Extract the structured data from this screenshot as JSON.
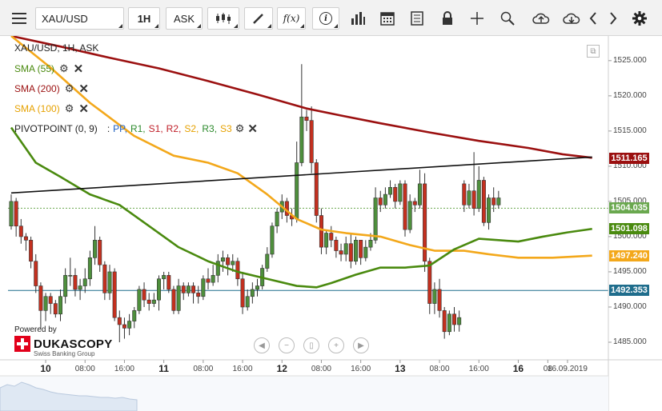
{
  "toolbar": {
    "menu_icon": "hamburger-menu-icon",
    "symbol": "XAU/USD",
    "timeframe": "1H",
    "price_side": "ASK",
    "fx_label": "f(x)",
    "info_label": "i",
    "icons": [
      "chart-type-icon",
      "draw-icon",
      "indicator-icon",
      "info-icon",
      "volume-icon",
      "calendar-icon",
      "news-icon",
      "lock-icon",
      "crosshair-icon",
      "zoom-icon",
      "upload-icon",
      "download-icon",
      "chevron-left-icon",
      "chevron-right-icon",
      "gear-icon"
    ]
  },
  "legend": {
    "title": "XAU/USD, 1H, ASK",
    "indicators": [
      {
        "label": "SMA (55)",
        "color": "#4a8a0f"
      },
      {
        "label": "SMA (200)",
        "color": "#9b1010"
      },
      {
        "label": "SMA (100)",
        "color": "#f3a81b"
      }
    ],
    "pivot": {
      "label": "PIVOTPOINT (0, 9)",
      "parts": [
        {
          "text": "PP,",
          "color": "#2060c0"
        },
        {
          "text": "R1,",
          "color": "#2e8b2e"
        },
        {
          "text": "S1,",
          "color": "#c0202a"
        },
        {
          "text": "R2,",
          "color": "#c0202a"
        },
        {
          "text": "S2,",
          "color": "#e6a100"
        },
        {
          "text": "R3,",
          "color": "#2e8b2e"
        },
        {
          "text": "S3",
          "color": "#e6a100"
        }
      ]
    }
  },
  "price_tags": [
    {
      "value": "1511.165",
      "color": "#9b1010",
      "price": 1511.165
    },
    {
      "value": "1504.035",
      "color": "#6aa84f",
      "price": 1504.035
    },
    {
      "value": "1501.098",
      "color": "#4a8a0f",
      "price": 1501.098
    },
    {
      "value": "1497.240",
      "color": "#f3a81b",
      "price": 1497.24
    },
    {
      "value": "1492.353",
      "color": "#1f6d8c",
      "price": 1492.353
    }
  ],
  "branding": {
    "powered": "Powered by",
    "brand": "DUKASCOPY",
    "sub": "Swiss Banking Group"
  },
  "nav_icons": [
    "scroll-left-icon",
    "zoom-out-icon",
    "reset-icon",
    "zoom-in-icon",
    "scroll-right-icon"
  ],
  "chart_data": {
    "type": "candlestick",
    "symbol": "XAU/USD",
    "timeframe": "1H",
    "ylim": [
      1482.5,
      1528.5
    ],
    "y_ticks": [
      1485,
      1490,
      1495,
      1500,
      1505,
      1510,
      1515,
      1520,
      1525
    ],
    "y_tick_labels": [
      "1485.000",
      "1490.000",
      "1495.000",
      "1500.000",
      "1505.000",
      "1510.000",
      "1515.000",
      "1520.000",
      "1525.000"
    ],
    "x_ticks": [
      {
        "label": "10",
        "x": 7,
        "major": true
      },
      {
        "label": "08:00",
        "x": 15
      },
      {
        "label": "16:00",
        "x": 23
      },
      {
        "label": "11",
        "x": 31,
        "major": true
      },
      {
        "label": "08:00",
        "x": 39
      },
      {
        "label": "16:00",
        "x": 47
      },
      {
        "label": "12",
        "x": 55,
        "major": true
      },
      {
        "label": "08:00",
        "x": 63
      },
      {
        "label": "16:00",
        "x": 71
      },
      {
        "label": "13",
        "x": 79,
        "major": true
      },
      {
        "label": "08:00",
        "x": 87
      },
      {
        "label": "16:00",
        "x": 95
      },
      {
        "label": "16",
        "x": 103,
        "major": true
      },
      {
        "label": "08",
        "x": 109
      },
      {
        "label": "16.09.2019",
        "x": 113
      }
    ],
    "trendline": {
      "from": [
        0,
        1506.2
      ],
      "to": [
        118,
        1511.3
      ],
      "color": "#111111"
    },
    "horizontal_lines": [
      {
        "price": 1504.035,
        "color": "#6aa84f",
        "dashed": true
      },
      {
        "price": 1492.353,
        "color": "#1f6d8c",
        "dashed": false
      }
    ],
    "series": [
      {
        "name": "SMA (200)",
        "color": "#9b1010",
        "points": [
          [
            0,
            1528.5
          ],
          [
            10,
            1527.0
          ],
          [
            20,
            1525.4
          ],
          [
            30,
            1523.9
          ],
          [
            40,
            1522.1
          ],
          [
            50,
            1520.2
          ],
          [
            60,
            1518.2
          ],
          [
            67,
            1517.2
          ],
          [
            75,
            1516.1
          ],
          [
            85,
            1514.8
          ],
          [
            95,
            1513.6
          ],
          [
            105,
            1512.6
          ],
          [
            112,
            1511.7
          ],
          [
            118,
            1511.2
          ]
        ]
      },
      {
        "name": "SMA (100)",
        "color": "#f3a81b",
        "points": [
          [
            0,
            1528.5
          ],
          [
            8,
            1524.0
          ],
          [
            16,
            1519.0
          ],
          [
            25,
            1514.3
          ],
          [
            33,
            1511.5
          ],
          [
            40,
            1510.5
          ],
          [
            46,
            1509.0
          ],
          [
            52,
            1506.0
          ],
          [
            58,
            1502.5
          ],
          [
            63,
            1501.0
          ],
          [
            68,
            1500.5
          ],
          [
            75,
            1500.0
          ],
          [
            81,
            1498.8
          ],
          [
            86,
            1498.0
          ],
          [
            92,
            1498.0
          ],
          [
            97,
            1497.5
          ],
          [
            103,
            1497.0
          ],
          [
            110,
            1497.0
          ],
          [
            118,
            1497.3
          ]
        ]
      },
      {
        "name": "SMA (55)",
        "color": "#4a8a0f",
        "points": [
          [
            0,
            1515.5
          ],
          [
            5,
            1510.5
          ],
          [
            10,
            1508.5
          ],
          [
            16,
            1506.0
          ],
          [
            22,
            1504.5
          ],
          [
            28,
            1501.5
          ],
          [
            34,
            1498.5
          ],
          [
            40,
            1496.5
          ],
          [
            46,
            1495.0
          ],
          [
            52,
            1494.0
          ],
          [
            58,
            1493.0
          ],
          [
            62,
            1492.8
          ],
          [
            65,
            1493.4
          ],
          [
            70,
            1494.6
          ],
          [
            75,
            1495.6
          ],
          [
            80,
            1495.6
          ],
          [
            85,
            1495.9
          ],
          [
            90,
            1498.2
          ],
          [
            95,
            1499.7
          ],
          [
            99,
            1499.5
          ],
          [
            103,
            1499.3
          ],
          [
            108,
            1500.0
          ],
          [
            113,
            1500.6
          ],
          [
            118,
            1501.1
          ]
        ]
      }
    ],
    "candles": [
      [
        0,
        1501.5,
        1505.0,
        1501.0,
        1506.0
      ],
      [
        1,
        1505.0,
        1501.5,
        1500.0,
        1505.5
      ],
      [
        2,
        1501.5,
        1500.0,
        1499.0,
        1502.5
      ],
      [
        3,
        1500.0,
        1499.5,
        1498.0,
        1500.5
      ],
      [
        4,
        1499.5,
        1496.5,
        1495.5,
        1500.0
      ],
      [
        5,
        1496.5,
        1493.0,
        1492.0,
        1497.5
      ],
      [
        6,
        1493.0,
        1489.5,
        1487.0,
        1493.5
      ],
      [
        7,
        1489.5,
        1491.5,
        1488.0,
        1492.0
      ],
      [
        8,
        1491.5,
        1490.5,
        1489.0,
        1492.0
      ],
      [
        9,
        1490.5,
        1489.0,
        1488.5,
        1491.0
      ],
      [
        10,
        1489.0,
        1491.5,
        1488.0,
        1492.5
      ],
      [
        11,
        1491.5,
        1494.5,
        1490.5,
        1495.5
      ],
      [
        12,
        1494.5,
        1494.5,
        1493.0,
        1497.0
      ],
      [
        13,
        1494.5,
        1492.5,
        1491.5,
        1495.5
      ],
      [
        14,
        1492.5,
        1493.0,
        1491.0,
        1494.0
      ],
      [
        15,
        1493.0,
        1494.0,
        1492.0,
        1495.5
      ],
      [
        16,
        1494.0,
        1497.0,
        1493.0,
        1498.0
      ],
      [
        17,
        1497.0,
        1499.5,
        1496.0,
        1501.5
      ],
      [
        18,
        1499.5,
        1496.0,
        1495.0,
        1500.0
      ],
      [
        19,
        1496.0,
        1492.0,
        1491.0,
        1496.5
      ],
      [
        20,
        1492.0,
        1495.0,
        1491.0,
        1496.0
      ],
      [
        21,
        1495.0,
        1488.5,
        1488.0,
        1495.5
      ],
      [
        22,
        1488.5,
        1487.5,
        1485.0,
        1489.5
      ],
      [
        23,
        1487.5,
        1487.0,
        1485.5,
        1488.5
      ],
      [
        24,
        1487.0,
        1488.0,
        1486.0,
        1489.0
      ],
      [
        25,
        1488.0,
        1489.5,
        1487.0,
        1490.0
      ],
      [
        26,
        1489.5,
        1492.5,
        1489.0,
        1493.0
      ],
      [
        27,
        1492.5,
        1491.0,
        1490.0,
        1493.5
      ],
      [
        28,
        1491.0,
        1490.5,
        1489.5,
        1492.0
      ],
      [
        29,
        1490.5,
        1491.0,
        1490.0,
        1492.0
      ],
      [
        30,
        1491.0,
        1494.0,
        1489.5,
        1494.5
      ],
      [
        31,
        1494.0,
        1494.5,
        1492.5,
        1495.0
      ],
      [
        32,
        1494.5,
        1492.5,
        1492.0,
        1495.0
      ],
      [
        33,
        1492.5,
        1489.5,
        1489.0,
        1493.0
      ],
      [
        34,
        1489.5,
        1493.0,
        1489.0,
        1494.0
      ],
      [
        35,
        1493.0,
        1492.0,
        1491.0,
        1493.5
      ],
      [
        36,
        1492.0,
        1493.0,
        1491.5,
        1493.5
      ],
      [
        37,
        1493.0,
        1492.0,
        1490.5,
        1493.5
      ],
      [
        38,
        1492.0,
        1491.5,
        1490.5,
        1493.0
      ],
      [
        39,
        1491.5,
        1494.0,
        1491.0,
        1494.5
      ],
      [
        40,
        1494.0,
        1493.5,
        1492.5,
        1495.5
      ],
      [
        41,
        1493.5,
        1494.5,
        1493.0,
        1496.0
      ],
      [
        42,
        1494.5,
        1496.5,
        1493.5,
        1497.5
      ],
      [
        43,
        1496.5,
        1497.0,
        1495.0,
        1498.0
      ],
      [
        44,
        1497.0,
        1496.0,
        1494.5,
        1497.5
      ],
      [
        45,
        1496.0,
        1496.5,
        1495.0,
        1497.5
      ],
      [
        46,
        1496.5,
        1494.0,
        1493.0,
        1497.0
      ],
      [
        47,
        1494.0,
        1490.0,
        1489.0,
        1495.0
      ],
      [
        48,
        1490.0,
        1491.5,
        1489.5,
        1492.5
      ],
      [
        49,
        1491.5,
        1492.5,
        1490.5,
        1493.5
      ],
      [
        50,
        1492.5,
        1493.0,
        1491.5,
        1494.0
      ],
      [
        51,
        1493.0,
        1495.5,
        1492.5,
        1496.0
      ],
      [
        52,
        1495.5,
        1497.5,
        1495.0,
        1498.5
      ],
      [
        53,
        1497.5,
        1501.5,
        1497.0,
        1502.0
      ],
      [
        54,
        1501.5,
        1503.5,
        1500.5,
        1504.0
      ],
      [
        55,
        1503.5,
        1505.0,
        1502.5,
        1506.0
      ],
      [
        56,
        1505.0,
        1503.0,
        1502.0,
        1505.5
      ],
      [
        57,
        1503.0,
        1502.5,
        1501.5,
        1504.0
      ],
      [
        58,
        1502.5,
        1510.5,
        1502.0,
        1513.5
      ],
      [
        59,
        1510.5,
        1517.0,
        1510.0,
        1524.5
      ],
      [
        60,
        1517.0,
        1516.5,
        1515.0,
        1518.0
      ],
      [
        61,
        1516.5,
        1510.5,
        1509.0,
        1518.5
      ],
      [
        62,
        1510.5,
        1503.0,
        1502.0,
        1511.0
      ],
      [
        63,
        1503.0,
        1498.5,
        1497.5,
        1504.0
      ],
      [
        64,
        1498.5,
        1500.5,
        1497.5,
        1501.0
      ],
      [
        65,
        1500.5,
        1499.5,
        1498.5,
        1501.5
      ],
      [
        66,
        1499.5,
        1498.0,
        1497.0,
        1500.0
      ],
      [
        67,
        1498.0,
        1497.5,
        1496.5,
        1499.0
      ],
      [
        68,
        1497.5,
        1499.0,
        1496.5,
        1500.0
      ],
      [
        69,
        1499.0,
        1496.5,
        1495.5,
        1500.5
      ],
      [
        70,
        1496.5,
        1499.5,
        1496.0,
        1500.0
      ],
      [
        71,
        1499.5,
        1497.0,
        1496.0,
        1499.5
      ],
      [
        72,
        1497.0,
        1498.5,
        1496.5,
        1499.5
      ],
      [
        73,
        1498.5,
        1499.5,
        1498.0,
        1500.5
      ],
      [
        74,
        1499.5,
        1505.5,
        1499.0,
        1507.0
      ],
      [
        75,
        1505.5,
        1504.5,
        1503.5,
        1506.5
      ],
      [
        76,
        1504.5,
        1506.0,
        1504.0,
        1507.0
      ],
      [
        77,
        1506.0,
        1507.0,
        1505.5,
        1508.0
      ],
      [
        78,
        1507.0,
        1505.0,
        1504.0,
        1507.5
      ],
      [
        79,
        1505.0,
        1507.5,
        1504.5,
        1508.0
      ],
      [
        80,
        1507.5,
        1501.0,
        1500.0,
        1508.0
      ],
      [
        81,
        1501.0,
        1505.0,
        1500.5,
        1506.0
      ],
      [
        82,
        1505.0,
        1504.5,
        1503.5,
        1505.5
      ],
      [
        83,
        1504.5,
        1507.5,
        1504.0,
        1509.5
      ],
      [
        84,
        1507.5,
        1496.5,
        1495.0,
        1509.0
      ],
      [
        85,
        1496.5,
        1490.5,
        1489.0,
        1497.0
      ],
      [
        86,
        1490.5,
        1492.5,
        1489.0,
        1493.5
      ],
      [
        87,
        1492.5,
        1489.5,
        1488.5,
        1494.0
      ],
      [
        88,
        1489.5,
        1486.5,
        1485.5,
        1490.0
      ],
      [
        89,
        1486.5,
        1489.0,
        1486.0,
        1489.5
      ],
      [
        90,
        1489.0,
        1487.5,
        1486.5,
        1490.0
      ],
      [
        91,
        1487.5,
        1488.5,
        1486.5,
        1489.5
      ],
      [
        92,
        1507.5,
        1504.5,
        1503.5,
        1508.0
      ],
      [
        93,
        1504.5,
        1506.5,
        1504.0,
        1507.5
      ],
      [
        94,
        1506.5,
        1504.0,
        1503.0,
        1512.0
      ],
      [
        95,
        1504.0,
        1508.0,
        1503.5,
        1510.0
      ],
      [
        96,
        1508.0,
        1502.0,
        1501.5,
        1508.5
      ],
      [
        97,
        1502.0,
        1505.5,
        1501.0,
        1506.0
      ],
      [
        98,
        1505.5,
        1504.5,
        1503.5,
        1507.0
      ],
      [
        99,
        1504.5,
        1505.5,
        1504.0,
        1506.5
      ]
    ]
  }
}
